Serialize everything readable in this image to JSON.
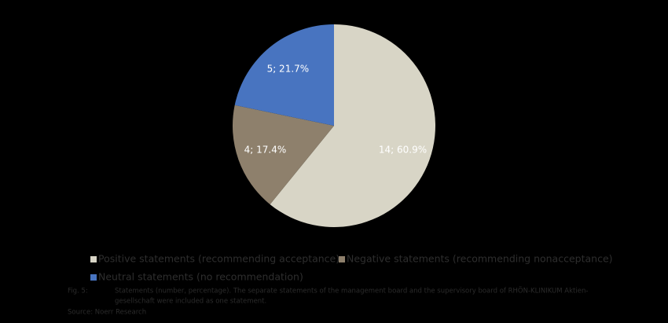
{
  "chart_data": {
    "type": "pie",
    "categories": [
      "Positive statements (recommending acceptance)",
      "Negative statements (recommending nonacceptance)",
      "Neutral statements (no recommendation)"
    ],
    "values": [
      14,
      4,
      5
    ],
    "value_labels": [
      "14; 60.9%",
      "4; 17.4%",
      "5; 21.7%"
    ],
    "colors": [
      "#d8d5c6",
      "#8e806c",
      "#4874c0"
    ]
  },
  "caption": {
    "figure": "Fig. 5:",
    "lines": [
      "Statements (number, percentage). The separate statements of the management board and the supervisory board of RHÖN-KLINIKUM Aktien-",
      "gesellschaft were included as one statement."
    ],
    "source": "Source: Noerr Research"
  }
}
